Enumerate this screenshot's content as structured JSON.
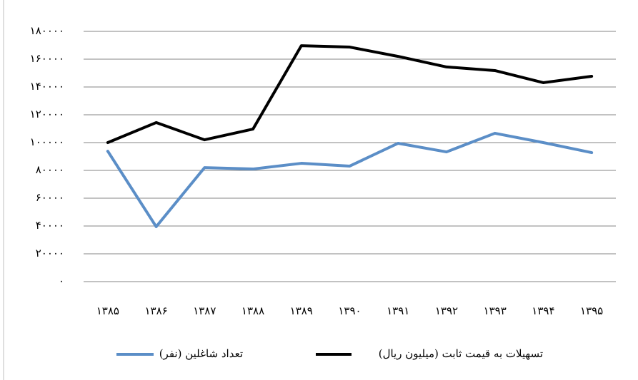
{
  "chart_data": {
    "type": "line",
    "categories": [
      "۱۳۸۵",
      "۱۳۸۶",
      "۱۳۸۷",
      "۱۳۸۸",
      "۱۳۸۹",
      "۱۳۹۰",
      "۱۳۹۱",
      "۱۳۹۲",
      "۱۳۹۳",
      "۱۳۹۴",
      "۱۳۹۵"
    ],
    "series": [
      {
        "name": "تسهیلات به قیمت ثابت (میلیون ریال)",
        "color": "#000000",
        "values": [
          100000,
          114400,
          102000,
          109700,
          169700,
          168700,
          162000,
          154400,
          151800,
          143100,
          147700
        ]
      },
      {
        "name": "تعداد شاغلین (نفر)",
        "color": "#5b8ec7",
        "values": [
          93800,
          39500,
          82000,
          81000,
          85100,
          83100,
          99500,
          93300,
          106700,
          100000,
          92800
        ]
      }
    ],
    "ylim": [
      0,
      180000
    ],
    "yticks": [
      {
        "value": 0,
        "label": "۰"
      },
      {
        "value": 20000,
        "label": "۲۰۰۰۰"
      },
      {
        "value": 40000,
        "label": "۴۰۰۰۰"
      },
      {
        "value": 60000,
        "label": "۶۰۰۰۰"
      },
      {
        "value": 80000,
        "label": "۸۰۰۰۰"
      },
      {
        "value": 100000,
        "label": "۱۰۰۰۰۰"
      },
      {
        "value": 120000,
        "label": "۱۲۰۰۰۰"
      },
      {
        "value": 140000,
        "label": "۱۴۰۰۰۰"
      },
      {
        "value": 160000,
        "label": "۱۶۰۰۰۰"
      },
      {
        "value": 180000,
        "label": "۱۸۰۰۰۰"
      }
    ],
    "grid": true
  }
}
